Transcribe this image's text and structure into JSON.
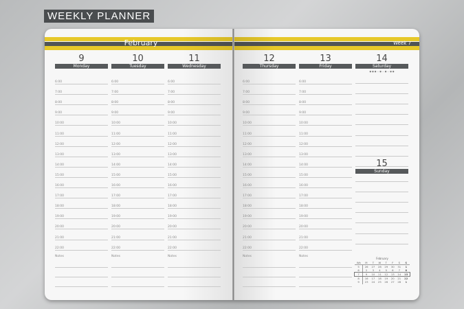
{
  "title": "WEEKLY PLANNER",
  "month": "February",
  "week": "Week 7",
  "colors": {
    "accent": "#e6c829",
    "dark": "#505455"
  },
  "days_left": [
    {
      "num": "9",
      "name": "Monday"
    },
    {
      "num": "10",
      "name": "Tuesday"
    },
    {
      "num": "11",
      "name": "Wednesday"
    }
  ],
  "days_right": [
    {
      "num": "12",
      "name": "Thursday"
    },
    {
      "num": "13",
      "name": "Friday"
    }
  ],
  "saturday": {
    "num": "14",
    "name": "Saturday"
  },
  "sunday": {
    "num": "15",
    "name": "Sunday"
  },
  "times": [
    "6:00",
    "7:00",
    "8:00",
    "9:00",
    "10:00",
    "11:00",
    "12:00",
    "13:00",
    "14:00",
    "15:00",
    "16:00",
    "17:00",
    "18:00",
    "19:00",
    "20:00",
    "21:00",
    "22:00"
  ],
  "notes_label": "Notes",
  "mini_calendar": {
    "title": "February",
    "headers": [
      "Wk",
      "M",
      "T",
      "W",
      "T",
      "F",
      "S",
      "S"
    ],
    "rows": [
      [
        "5",
        "26",
        "27",
        "28",
        "29",
        "30",
        "31",
        "1"
      ],
      [
        "6",
        "2",
        "3",
        "4",
        "5",
        "6",
        "7",
        "8"
      ],
      [
        "7",
        "9",
        "10",
        "11",
        "12",
        "13",
        "14",
        "15"
      ],
      [
        "8",
        "16",
        "17",
        "18",
        "19",
        "20",
        "21",
        "22"
      ],
      [
        "9",
        "23",
        "24",
        "25",
        "26",
        "27",
        "28",
        "1"
      ]
    ]
  }
}
